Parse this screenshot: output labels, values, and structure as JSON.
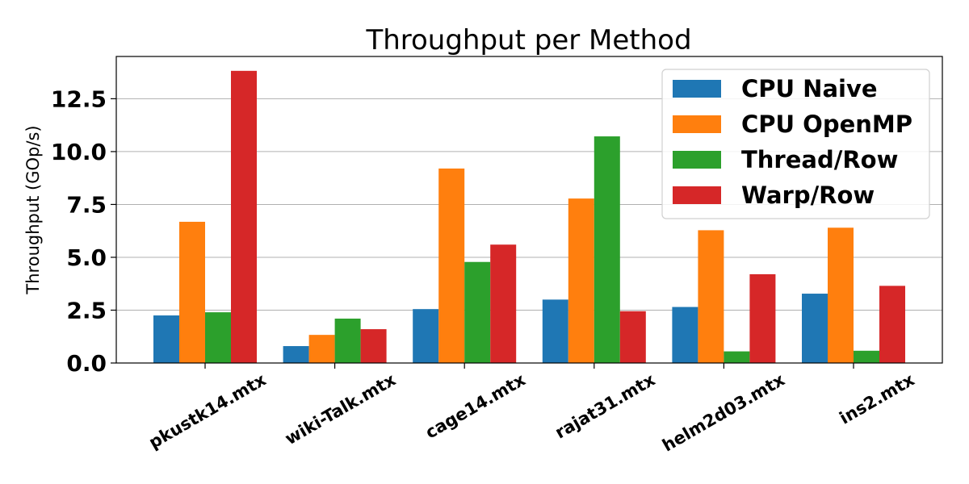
{
  "chart_data": {
    "type": "bar",
    "title": "Throughput per Method",
    "xlabel": "",
    "ylabel": "Throughput (GOp/s)",
    "ylim": [
      0,
      14.5
    ],
    "yticks": [
      "0.0",
      "2.5",
      "5.0",
      "7.5",
      "10.0",
      "12.5"
    ],
    "categories": [
      "pkustk14.mtx",
      "wiki-Talk.mtx",
      "cage14.mtx",
      "rajat31.mtx",
      "helm2d03.mtx",
      "ins2.mtx"
    ],
    "grid": "horizontal",
    "legend_position": "top-right",
    "series": [
      {
        "name": "CPU Naive",
        "color": "#1f77b4",
        "values": [
          2.25,
          0.8,
          2.55,
          3.0,
          2.65,
          3.28
        ]
      },
      {
        "name": "CPU OpenMP",
        "color": "#ff7f0e",
        "values": [
          6.68,
          1.33,
          9.2,
          7.78,
          6.28,
          6.4
        ]
      },
      {
        "name": "Thread/Row",
        "color": "#2ca02c",
        "values": [
          2.4,
          2.1,
          4.78,
          10.72,
          0.55,
          0.58
        ]
      },
      {
        "name": "Warp/Row",
        "color": "#d62728",
        "values": [
          13.82,
          1.6,
          5.6,
          2.45,
          4.2,
          3.65
        ]
      }
    ]
  }
}
